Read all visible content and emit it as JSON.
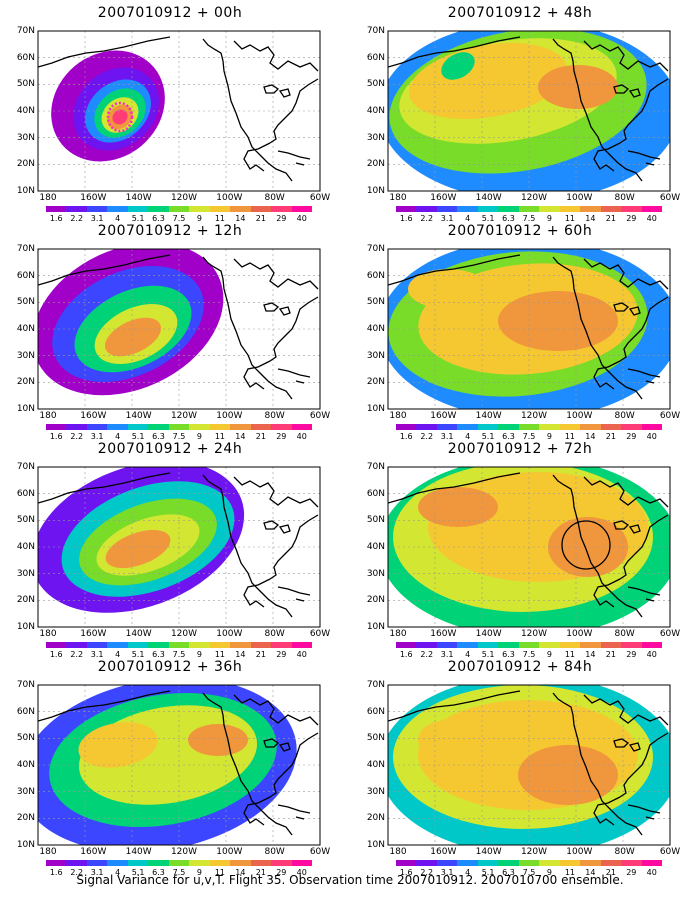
{
  "colors": {
    "scale": [
      "#a000c8",
      "#6e14f0",
      "#3c46ff",
      "#1e8cff",
      "#00c8c8",
      "#00d278",
      "#78dc28",
      "#d2e632",
      "#f5c832",
      "#f0963c",
      "#eb6450",
      "#ff3c78",
      "#ff0aa0"
    ],
    "land_outline": "#000000",
    "background": "#ffffff",
    "marker_ring": "#ff28c8"
  },
  "colorbar_labels": [
    "1.6",
    "2.2",
    "3.1",
    "4",
    "5.1",
    "6.3",
    "7.5",
    "9",
    "11",
    "14",
    "21",
    "29",
    "40"
  ],
  "lat_labels": [
    "70N",
    "60N",
    "50N",
    "40N",
    "30N",
    "20N",
    "10N"
  ],
  "lon_labels": [
    "180",
    "160W",
    "140W",
    "120W",
    "100W",
    "80W",
    "60W"
  ],
  "panels": [
    {
      "title": "2007010912 + 00h"
    },
    {
      "title": "2007010912 + 48h"
    },
    {
      "title": "2007010912 + 12h"
    },
    {
      "title": "2007010912 + 60h"
    },
    {
      "title": "2007010912 + 24h"
    },
    {
      "title": "2007010912 + 72h"
    },
    {
      "title": "2007010912 + 36h"
    },
    {
      "title": "2007010912 + 84h"
    }
  ],
  "caption": "Signal Variance for u,v,T. Flight 35. Observation time 2007010912. 2007010700 ensemble."
}
